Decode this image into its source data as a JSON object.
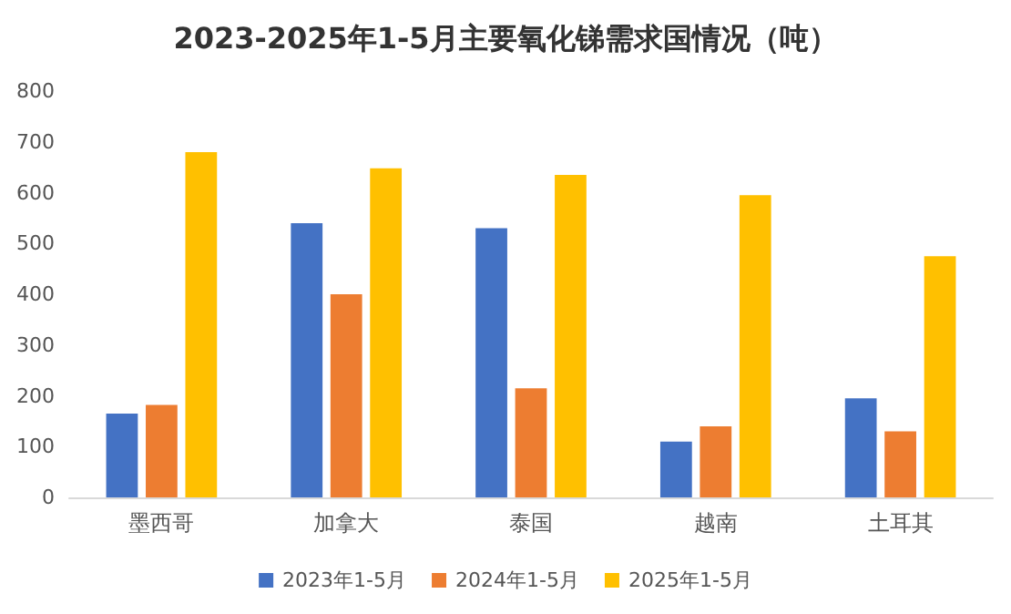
{
  "chart_data": {
    "type": "bar",
    "title": "2023-2025年1-5月主要氧化锑需求国情况（吨）",
    "categories": [
      "墨西哥",
      "加拿大",
      "泰国",
      "越南",
      "土耳其"
    ],
    "series": [
      {
        "name": "2023年1-5月",
        "color": "#4472c4",
        "values": [
          165,
          540,
          530,
          110,
          195
        ]
      },
      {
        "name": "2024年1-5月",
        "color": "#ed7d31",
        "values": [
          182,
          400,
          215,
          140,
          130
        ]
      },
      {
        "name": "2025年1-5月",
        "color": "#ffc000",
        "values": [
          680,
          648,
          635,
          595,
          475
        ]
      }
    ],
    "ylim": [
      0,
      800
    ],
    "yticks": [
      0,
      100,
      200,
      300,
      400,
      500,
      600,
      700,
      800
    ],
    "grid": false,
    "legend": "bottom"
  }
}
